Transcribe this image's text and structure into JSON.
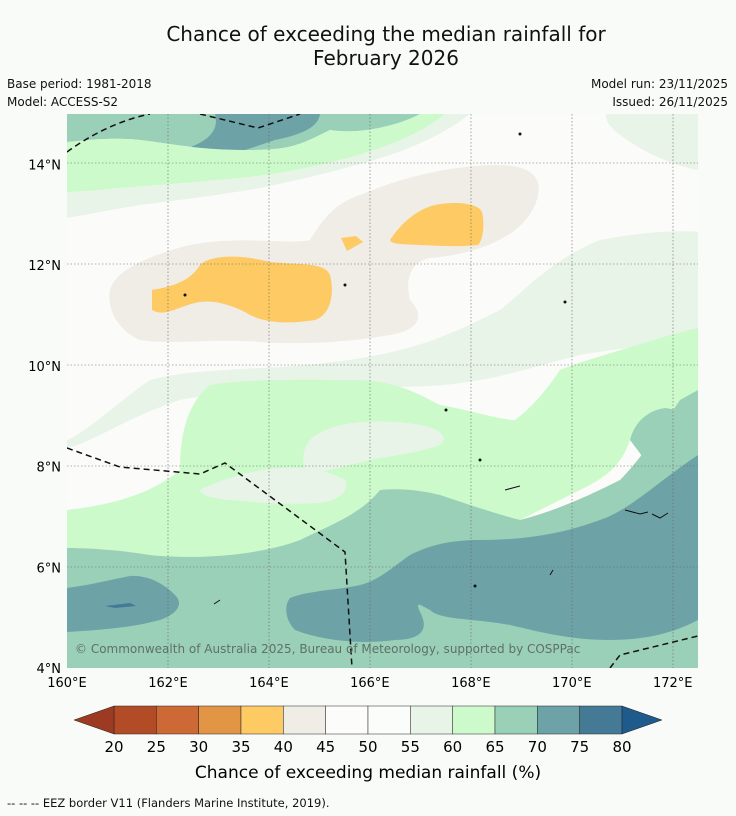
{
  "title_line1": "Chance of exceeding the median rainfall for",
  "title_line2": "February 2026",
  "base_period": "Base period: 1981-2018",
  "model": "Model: ACCESS-S2",
  "model_run": "Model run: 23/11/2025",
  "issued": "Issued: 26/11/2025",
  "copyright": "© Commonwealth of Australia 2025, Bureau of Meteorology, supported by COSPPac",
  "legend_note": "-- -- -- EEZ border V11 (Flanders Marine Institute, 2019).",
  "chart_data": {
    "type": "map",
    "lon_range": [
      160,
      172.5
    ],
    "lat_range": [
      4,
      15
    ],
    "x_ticks": [
      "160°E",
      "162°E",
      "164°E",
      "166°E",
      "168°E",
      "170°E",
      "172°E"
    ],
    "y_ticks": [
      "14°N",
      "12°N",
      "10°N",
      "8°N",
      "6°N",
      "4°N"
    ],
    "colorbar": {
      "label": "Chance of exceeding median rainfall (%)",
      "ticks": [
        "20",
        "25",
        "30",
        "35",
        "40",
        "45",
        "50",
        "55",
        "60",
        "65",
        "70",
        "75",
        "80"
      ],
      "colors": [
        "#b24c27",
        "#cd6935",
        "#e29645",
        "#fdca64",
        "#f0ece6",
        "#fcfdfb",
        "#fbfdfa",
        "#e8f4e8",
        "#ccfacb",
        "#9bd0b8",
        "#6da3a7",
        "#457a97"
      ],
      "under_color": "#9c3a22",
      "over_color": "#1f5a8c"
    },
    "regions": {
      "top_green_band": "#9bd0b8",
      "top_teal_patch": "#6da3a7",
      "light_green": "#ccfacb",
      "pale_green": "#e8f4e8",
      "beige": "#f0ece6",
      "orange": "#fdca64",
      "white": "#fbfcfa"
    }
  }
}
